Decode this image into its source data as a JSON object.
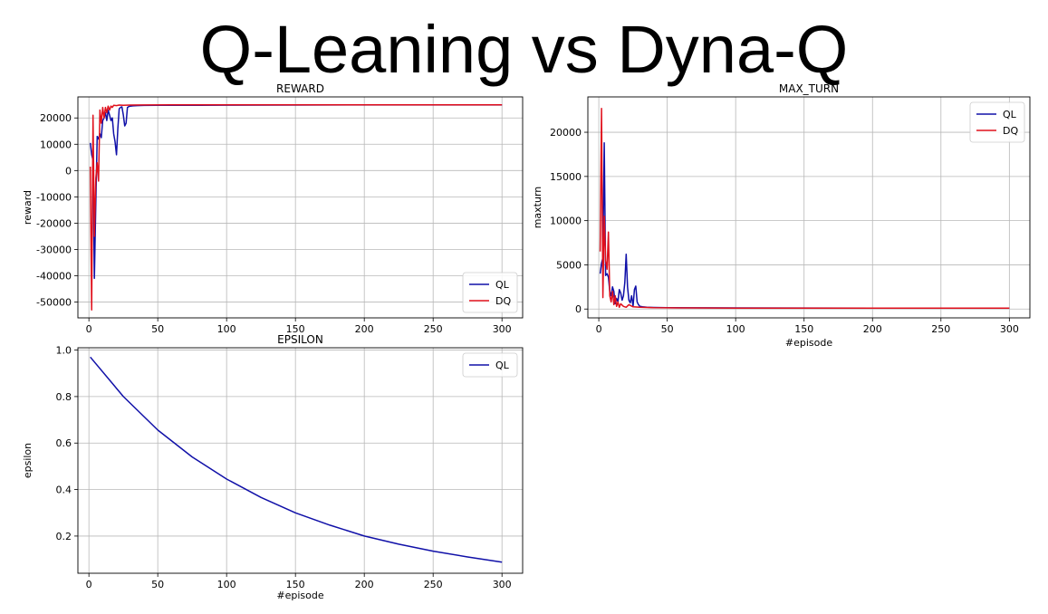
{
  "page_title": "Q-Leaning vs Dyna-Q",
  "colors": {
    "QL": "#1010a8",
    "DQ": "#e0101c",
    "grid": "#b8b8b8",
    "axes": "#000000"
  },
  "chart_data": [
    {
      "id": "reward",
      "type": "line",
      "title": "REWARD",
      "xlabel": "",
      "ylabel": "reward",
      "xlim": [
        -8,
        315
      ],
      "ylim": [
        -56000,
        28000
      ],
      "xticks": [
        0,
        50,
        100,
        150,
        200,
        250,
        300
      ],
      "yticks": [
        -50000,
        -40000,
        -30000,
        -20000,
        -10000,
        0,
        10000,
        20000
      ],
      "grid": true,
      "legend": "lower-right",
      "series": [
        {
          "name": "QL",
          "points": [
            [
              1,
              10500
            ],
            [
              2,
              6000
            ],
            [
              3,
              4000
            ],
            [
              4,
              -41000
            ],
            [
              5,
              -12000
            ],
            [
              6,
              13000
            ],
            [
              7,
              12000
            ],
            [
              8,
              14000
            ],
            [
              9,
              12500
            ],
            [
              10,
              19000
            ],
            [
              11,
              20000
            ],
            [
              12,
              22000
            ],
            [
              13,
              19000
            ],
            [
              14,
              23000
            ],
            [
              15,
              21000
            ],
            [
              16,
              19000
            ],
            [
              17,
              20000
            ],
            [
              18,
              14000
            ],
            [
              19,
              11000
            ],
            [
              20,
              6000
            ],
            [
              21,
              16000
            ],
            [
              22,
              23500
            ],
            [
              23,
              24000
            ],
            [
              24,
              24200
            ],
            [
              25,
              21000
            ],
            [
              26,
              17000
            ],
            [
              27,
              18000
            ],
            [
              28,
              24000
            ],
            [
              29,
              24300
            ],
            [
              30,
              24500
            ],
            [
              32,
              24600
            ],
            [
              35,
              24700
            ],
            [
              40,
              24750
            ],
            [
              50,
              24800
            ],
            [
              60,
              24820
            ],
            [
              80,
              24850
            ],
            [
              100,
              24870
            ],
            [
              150,
              24900
            ],
            [
              200,
              24920
            ],
            [
              250,
              24930
            ],
            [
              300,
              24950
            ]
          ]
        },
        {
          "name": "DQ",
          "points": [
            [
              1,
              1500
            ],
            [
              2,
              -53000
            ],
            [
              3,
              21000
            ],
            [
              4,
              -25000
            ],
            [
              5,
              -3000
            ],
            [
              6,
              3000
            ],
            [
              7,
              -4000
            ],
            [
              8,
              23000
            ],
            [
              9,
              18000
            ],
            [
              10,
              24000
            ],
            [
              11,
              20000
            ],
            [
              12,
              24000
            ],
            [
              13,
              22000
            ],
            [
              14,
              24500
            ],
            [
              15,
              23000
            ],
            [
              16,
              24500
            ],
            [
              17,
              24000
            ],
            [
              18,
              24800
            ],
            [
              20,
              24700
            ],
            [
              22,
              24900
            ],
            [
              25,
              24800
            ],
            [
              30,
              24900
            ],
            [
              40,
              24950
            ],
            [
              60,
              24960
            ],
            [
              100,
              24970
            ],
            [
              150,
              24980
            ],
            [
              200,
              24985
            ],
            [
              250,
              24990
            ],
            [
              300,
              24990
            ]
          ]
        }
      ]
    },
    {
      "id": "max_turn",
      "type": "line",
      "title": "MAX_TURN",
      "xlabel": "#episode",
      "ylabel": "maxturn",
      "xlim": [
        -8,
        315
      ],
      "ylim": [
        -1000,
        24000
      ],
      "xticks": [
        0,
        50,
        100,
        150,
        200,
        250,
        300
      ],
      "yticks": [
        0,
        5000,
        10000,
        15000,
        20000
      ],
      "grid": true,
      "legend": "upper-right",
      "series": [
        {
          "name": "QL",
          "points": [
            [
              1,
              4000
            ],
            [
              2,
              5200
            ],
            [
              3,
              5800
            ],
            [
              4,
              18800
            ],
            [
              5,
              3800
            ],
            [
              6,
              4000
            ],
            [
              7,
              3600
            ],
            [
              8,
              2000
            ],
            [
              9,
              1500
            ],
            [
              10,
              2500
            ],
            [
              11,
              2000
            ],
            [
              12,
              600
            ],
            [
              13,
              1200
            ],
            [
              14,
              800
            ],
            [
              15,
              2200
            ],
            [
              16,
              1800
            ],
            [
              17,
              1000
            ],
            [
              18,
              1500
            ],
            [
              19,
              3000
            ],
            [
              20,
              6200
            ],
            [
              21,
              2500
            ],
            [
              22,
              1000
            ],
            [
              23,
              700
            ],
            [
              24,
              1500
            ],
            [
              25,
              300
            ],
            [
              26,
              2200
            ],
            [
              27,
              2600
            ],
            [
              28,
              800
            ],
            [
              29,
              500
            ],
            [
              30,
              300
            ],
            [
              32,
              250
            ],
            [
              35,
              200
            ],
            [
              40,
              180
            ],
            [
              50,
              150
            ],
            [
              100,
              130
            ],
            [
              150,
              120
            ],
            [
              200,
              110
            ],
            [
              250,
              100
            ],
            [
              300,
              100
            ]
          ]
        },
        {
          "name": "DQ",
          "points": [
            [
              1,
              6500
            ],
            [
              2,
              22700
            ],
            [
              3,
              1300
            ],
            [
              4,
              10500
            ],
            [
              5,
              5500
            ],
            [
              6,
              4500
            ],
            [
              7,
              8700
            ],
            [
              8,
              1500
            ],
            [
              9,
              800
            ],
            [
              10,
              2000
            ],
            [
              11,
              500
            ],
            [
              12,
              1500
            ],
            [
              13,
              300
            ],
            [
              14,
              800
            ],
            [
              15,
              200
            ],
            [
              16,
              600
            ],
            [
              18,
              300
            ],
            [
              20,
              200
            ],
            [
              22,
              500
            ],
            [
              25,
              250
            ],
            [
              30,
              200
            ],
            [
              40,
              150
            ],
            [
              60,
              130
            ],
            [
              100,
              110
            ],
            [
              150,
              100
            ],
            [
              200,
              100
            ],
            [
              250,
              100
            ],
            [
              300,
              100
            ]
          ]
        }
      ]
    },
    {
      "id": "epsilon",
      "type": "line",
      "title": "EPSILON",
      "xlabel": "#episode",
      "ylabel": "epsilon",
      "xlim": [
        -8,
        315
      ],
      "ylim": [
        0.04,
        1.01
      ],
      "xticks": [
        0,
        50,
        100,
        150,
        200,
        250,
        300
      ],
      "yticks": [
        0.2,
        0.4,
        0.6,
        0.8,
        1.0
      ],
      "ytick_labels": [
        "0.2",
        "0.4",
        "0.6",
        "0.8",
        "1.0"
      ],
      "grid": true,
      "legend": "upper-right",
      "series": [
        {
          "name": "QL",
          "points": [
            [
              1,
              0.97
            ],
            [
              25,
              0.8
            ],
            [
              50,
              0.656
            ],
            [
              75,
              0.54
            ],
            [
              100,
              0.445
            ],
            [
              125,
              0.366
            ],
            [
              150,
              0.3
            ],
            [
              175,
              0.247
            ],
            [
              200,
              0.2
            ],
            [
              225,
              0.165
            ],
            [
              250,
              0.135
            ],
            [
              275,
              0.11
            ],
            [
              300,
              0.088
            ]
          ]
        }
      ]
    }
  ]
}
